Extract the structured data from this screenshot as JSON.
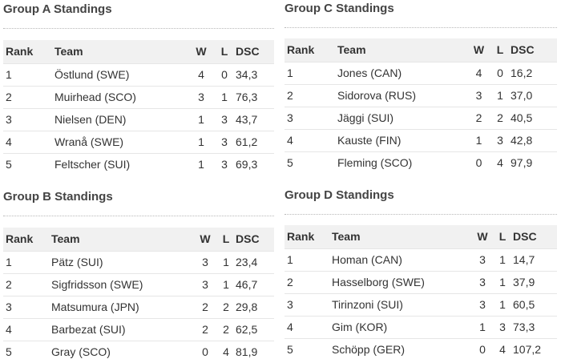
{
  "headers": {
    "rank": "Rank",
    "team": "Team",
    "w": "W",
    "l": "L",
    "dsc": "DSC"
  },
  "groups": [
    {
      "title": "Group A Standings",
      "rows": [
        {
          "rank": "1",
          "team": "Östlund (SWE)",
          "w": "4",
          "l": "0",
          "dsc": "34,3"
        },
        {
          "rank": "2",
          "team": "Muirhead (SCO)",
          "w": "3",
          "l": "1",
          "dsc": "76,3"
        },
        {
          "rank": "3",
          "team": "Nielsen (DEN)",
          "w": "1",
          "l": "3",
          "dsc": "43,7"
        },
        {
          "rank": "4",
          "team": "Wranå (SWE)",
          "w": "1",
          "l": "3",
          "dsc": "61,2"
        },
        {
          "rank": "5",
          "team": "Feltscher (SUI)",
          "w": "1",
          "l": "3",
          "dsc": "69,3"
        }
      ]
    },
    {
      "title": "Group C Standings",
      "rows": [
        {
          "rank": "1",
          "team": "Jones (CAN)",
          "w": "4",
          "l": "0",
          "dsc": "16,2"
        },
        {
          "rank": "2",
          "team": "Sidorova (RUS)",
          "w": "3",
          "l": "1",
          "dsc": "37,0"
        },
        {
          "rank": "3",
          "team": "Jäggi (SUI)",
          "w": "2",
          "l": "2",
          "dsc": "40,5"
        },
        {
          "rank": "4",
          "team": "Kauste (FIN)",
          "w": "1",
          "l": "3",
          "dsc": "42,8"
        },
        {
          "rank": "5",
          "team": "Fleming (SCO)",
          "w": "0",
          "l": "4",
          "dsc": "97,9"
        }
      ]
    },
    {
      "title": "Group B Standings",
      "rows": [
        {
          "rank": "1",
          "team": "Pätz (SUI)",
          "w": "3",
          "l": "1",
          "dsc": "23,4"
        },
        {
          "rank": "2",
          "team": "Sigfridsson (SWE)",
          "w": "3",
          "l": "1",
          "dsc": "46,7"
        },
        {
          "rank": "3",
          "team": "Matsumura (JPN)",
          "w": "2",
          "l": "2",
          "dsc": "29,8"
        },
        {
          "rank": "4",
          "team": "Barbezat (SUI)",
          "w": "2",
          "l": "2",
          "dsc": "62,5"
        },
        {
          "rank": "5",
          "team": "Gray (SCO)",
          "w": "0",
          "l": "4",
          "dsc": "81,9"
        }
      ]
    },
    {
      "title": "Group D Standings",
      "rows": [
        {
          "rank": "1",
          "team": "Homan (CAN)",
          "w": "3",
          "l": "1",
          "dsc": "14,7"
        },
        {
          "rank": "2",
          "team": "Hasselborg (SWE)",
          "w": "3",
          "l": "1",
          "dsc": "37,9"
        },
        {
          "rank": "3",
          "team": "Tirinzoni (SUI)",
          "w": "3",
          "l": "1",
          "dsc": "60,5"
        },
        {
          "rank": "4",
          "team": "Gim (KOR)",
          "w": "1",
          "l": "3",
          "dsc": "73,3"
        },
        {
          "rank": "5",
          "team": "Schöpp (GER)",
          "w": "0",
          "l": "4",
          "dsc": "107,2"
        }
      ]
    }
  ]
}
